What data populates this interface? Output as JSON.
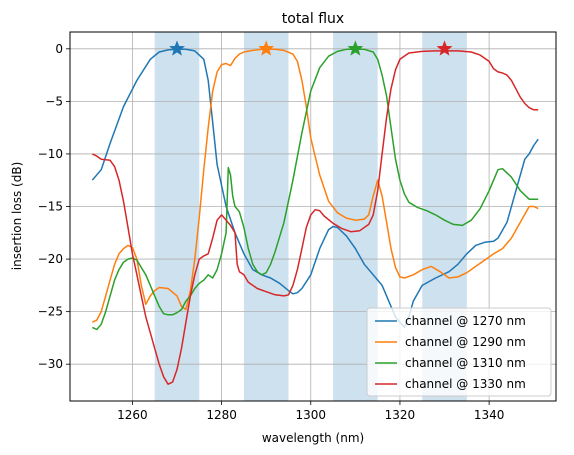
{
  "chart_data": {
    "type": "line",
    "title": "total flux",
    "xlabel": "wavelength (nm)",
    "ylabel": "insertion loss (dB)",
    "xlim": [
      1246,
      1355
    ],
    "ylim": [
      -33.5,
      1.6
    ],
    "xticks": [
      1260,
      1280,
      1300,
      1320,
      1340
    ],
    "yticks": [
      0,
      -5,
      -10,
      -15,
      -20,
      -25,
      -30
    ],
    "grid": true,
    "legend_position": "bottom-right",
    "bands": [
      {
        "from": 1265,
        "to": 1275,
        "color": "#aecde3"
      },
      {
        "from": 1285,
        "to": 1295,
        "color": "#aecde3"
      },
      {
        "from": 1305,
        "to": 1315,
        "color": "#aecde3"
      },
      {
        "from": 1325,
        "to": 1335,
        "color": "#aecde3"
      }
    ],
    "series": [
      {
        "name": "channel @ 1270 nm",
        "color": "#1f77b4",
        "marker_x": 1270,
        "marker_y": 0,
        "points": [
          [
            1251,
            -12.5
          ],
          [
            1253,
            -11.5
          ],
          [
            1255,
            -9
          ],
          [
            1258,
            -5.5
          ],
          [
            1261,
            -3
          ],
          [
            1264,
            -1
          ],
          [
            1266,
            -0.3
          ],
          [
            1268,
            -0.1
          ],
          [
            1270,
            -0.05
          ],
          [
            1272,
            -0.05
          ],
          [
            1274,
            -0.2
          ],
          [
            1276,
            -1
          ],
          [
            1277,
            -3
          ],
          [
            1278,
            -7
          ],
          [
            1279,
            -11
          ],
          [
            1280,
            -13
          ],
          [
            1281,
            -15
          ],
          [
            1283,
            -17.5
          ],
          [
            1285,
            -19.5
          ],
          [
            1287,
            -21
          ],
          [
            1289,
            -21.5
          ],
          [
            1291,
            -21.8
          ],
          [
            1293,
            -22.3
          ],
          [
            1295,
            -23
          ],
          [
            1296,
            -23.3
          ],
          [
            1297,
            -23.2
          ],
          [
            1298,
            -22.8
          ],
          [
            1300,
            -21.5
          ],
          [
            1302,
            -19
          ],
          [
            1304,
            -17.2
          ],
          [
            1305,
            -16.9
          ],
          [
            1306,
            -17
          ],
          [
            1308,
            -17.8
          ],
          [
            1310,
            -19
          ],
          [
            1312,
            -20.5
          ],
          [
            1314,
            -21.5
          ],
          [
            1315,
            -22
          ],
          [
            1316,
            -22.5
          ],
          [
            1317,
            -23.5
          ],
          [
            1318,
            -24.5
          ],
          [
            1319,
            -25.5
          ],
          [
            1320,
            -26
          ],
          [
            1321,
            -26.5
          ],
          [
            1322,
            -25.5
          ],
          [
            1323,
            -24
          ],
          [
            1325,
            -22.5
          ],
          [
            1328,
            -21.8
          ],
          [
            1331,
            -21.2
          ],
          [
            1333,
            -20.5
          ],
          [
            1335,
            -19.5
          ],
          [
            1337,
            -18.7
          ],
          [
            1339,
            -18.4
          ],
          [
            1341,
            -18.3
          ],
          [
            1342,
            -18
          ],
          [
            1344,
            -16.5
          ],
          [
            1346,
            -13.5
          ],
          [
            1348,
            -10.5
          ],
          [
            1349,
            -10
          ],
          [
            1350,
            -9.2
          ],
          [
            1351,
            -8.6
          ]
        ]
      },
      {
        "name": "channel @ 1290 nm",
        "color": "#ff7f0e",
        "marker_x": 1290,
        "marker_y": 0,
        "points": [
          [
            1251,
            -26
          ],
          [
            1252,
            -25.8
          ],
          [
            1253,
            -25
          ],
          [
            1254,
            -23.5
          ],
          [
            1255,
            -22
          ],
          [
            1256,
            -20.5
          ],
          [
            1257,
            -19.5
          ],
          [
            1258,
            -19
          ],
          [
            1259,
            -18.7
          ],
          [
            1260,
            -18.9
          ],
          [
            1261,
            -20
          ],
          [
            1262,
            -22.5
          ],
          [
            1263,
            -24.3
          ],
          [
            1264,
            -23.5
          ],
          [
            1265,
            -23
          ],
          [
            1266,
            -22.7
          ],
          [
            1268,
            -22.8
          ],
          [
            1270,
            -23.5
          ],
          [
            1271,
            -24.5
          ],
          [
            1272,
            -24.8
          ],
          [
            1273,
            -23
          ],
          [
            1274,
            -20
          ],
          [
            1275,
            -16
          ],
          [
            1276,
            -11.5
          ],
          [
            1277,
            -7.5
          ],
          [
            1278,
            -4
          ],
          [
            1279,
            -2.2
          ],
          [
            1280,
            -1.5
          ],
          [
            1281,
            -1.4
          ],
          [
            1282,
            -1.6
          ],
          [
            1283,
            -0.9
          ],
          [
            1284,
            -0.5
          ],
          [
            1285,
            -0.3
          ],
          [
            1287,
            -0.15
          ],
          [
            1289,
            -0.05
          ],
          [
            1290,
            -0.05
          ],
          [
            1292,
            -0.05
          ],
          [
            1294,
            -0.15
          ],
          [
            1296,
            -0.5
          ],
          [
            1297,
            -1.2
          ],
          [
            1298,
            -3
          ],
          [
            1299,
            -5.5
          ],
          [
            1300,
            -8.5
          ],
          [
            1302,
            -12
          ],
          [
            1304,
            -14.5
          ],
          [
            1306,
            -15.6
          ],
          [
            1308,
            -16.1
          ],
          [
            1310,
            -16.3
          ],
          [
            1312,
            -16.2
          ],
          [
            1313,
            -15.8
          ],
          [
            1314,
            -14
          ],
          [
            1315,
            -12.5
          ],
          [
            1316,
            -14
          ],
          [
            1317,
            -16.5
          ],
          [
            1318,
            -19
          ],
          [
            1319,
            -20.8
          ],
          [
            1320,
            -21.7
          ],
          [
            1321,
            -21.8
          ],
          [
            1323,
            -21.5
          ],
          [
            1325,
            -21
          ],
          [
            1327,
            -20.7
          ],
          [
            1329,
            -21.2
          ],
          [
            1331,
            -21.8
          ],
          [
            1333,
            -21.7
          ],
          [
            1335,
            -21.3
          ],
          [
            1337,
            -20.7
          ],
          [
            1339,
            -20.1
          ],
          [
            1341,
            -19.5
          ],
          [
            1343,
            -19
          ],
          [
            1345,
            -18
          ],
          [
            1347,
            -16.5
          ],
          [
            1349,
            -15
          ],
          [
            1350,
            -15
          ],
          [
            1351,
            -15.2
          ]
        ]
      },
      {
        "name": "channel @ 1310 nm",
        "color": "#2ca02c",
        "marker_x": 1310,
        "marker_y": 0,
        "points": [
          [
            1251,
            -26.5
          ],
          [
            1252,
            -26.7
          ],
          [
            1253,
            -26.2
          ],
          [
            1254,
            -25
          ],
          [
            1255,
            -23.5
          ],
          [
            1256,
            -22
          ],
          [
            1257,
            -21
          ],
          [
            1258,
            -20.3
          ],
          [
            1259,
            -20
          ],
          [
            1260,
            -19.9
          ],
          [
            1261,
            -20.1
          ],
          [
            1262,
            -20.8
          ],
          [
            1263,
            -21.5
          ],
          [
            1264,
            -22.5
          ],
          [
            1265,
            -23.5
          ],
          [
            1266,
            -24.5
          ],
          [
            1267,
            -25.2
          ],
          [
            1268,
            -25.3
          ],
          [
            1269,
            -25.3
          ],
          [
            1270,
            -25.1
          ],
          [
            1271,
            -24.8
          ],
          [
            1272,
            -24
          ],
          [
            1273,
            -23.5
          ],
          [
            1274,
            -22.8
          ],
          [
            1275,
            -22.3
          ],
          [
            1276,
            -22
          ],
          [
            1277,
            -21.5
          ],
          [
            1278,
            -21.8
          ],
          [
            1279,
            -21
          ],
          [
            1280,
            -19.5
          ],
          [
            1281,
            -17.5
          ],
          [
            1281.5,
            -11.3
          ],
          [
            1282,
            -12
          ],
          [
            1282.5,
            -14
          ],
          [
            1283,
            -15
          ],
          [
            1284,
            -15.5
          ],
          [
            1285,
            -17
          ],
          [
            1286,
            -19
          ],
          [
            1287,
            -20.5
          ],
          [
            1288,
            -21.2
          ],
          [
            1289,
            -21.5
          ],
          [
            1290,
            -21.3
          ],
          [
            1291,
            -20.5
          ],
          [
            1292,
            -19.3
          ],
          [
            1294,
            -16.5
          ],
          [
            1296,
            -12.5
          ],
          [
            1298,
            -8
          ],
          [
            1300,
            -4
          ],
          [
            1302,
            -1.8
          ],
          [
            1304,
            -0.7
          ],
          [
            1306,
            -0.25
          ],
          [
            1308,
            -0.05
          ],
          [
            1310,
            -0.05
          ],
          [
            1312,
            -0.05
          ],
          [
            1314,
            -0.3
          ],
          [
            1315,
            -1
          ],
          [
            1316,
            -2.5
          ],
          [
            1317,
            -4.5
          ],
          [
            1318,
            -7.5
          ],
          [
            1319,
            -10.5
          ],
          [
            1320,
            -12.5
          ],
          [
            1321,
            -13.8
          ],
          [
            1322,
            -14.6
          ],
          [
            1324,
            -15.1
          ],
          [
            1326,
            -15.4
          ],
          [
            1328,
            -15.8
          ],
          [
            1330,
            -16.3
          ],
          [
            1332,
            -16.7
          ],
          [
            1334,
            -16.8
          ],
          [
            1336,
            -16.3
          ],
          [
            1338,
            -15.2
          ],
          [
            1340,
            -13.5
          ],
          [
            1342,
            -11.5
          ],
          [
            1343,
            -11.4
          ],
          [
            1345,
            -12.2
          ],
          [
            1347,
            -13.5
          ],
          [
            1349,
            -14.3
          ],
          [
            1351,
            -14.3
          ]
        ]
      },
      {
        "name": "channel @ 1330 nm",
        "color": "#d62728",
        "marker_x": 1330,
        "marker_y": 0,
        "points": [
          [
            1251,
            -10
          ],
          [
            1252,
            -10.2
          ],
          [
            1253,
            -10.5
          ],
          [
            1255,
            -10.6
          ],
          [
            1256,
            -11.2
          ],
          [
            1257,
            -12.5
          ],
          [
            1258,
            -14.5
          ],
          [
            1259,
            -17
          ],
          [
            1260,
            -19.5
          ],
          [
            1261,
            -21.5
          ],
          [
            1262,
            -23.5
          ],
          [
            1263,
            -25.5
          ],
          [
            1264,
            -27
          ],
          [
            1265,
            -28.5
          ],
          [
            1266,
            -30
          ],
          [
            1267,
            -31.2
          ],
          [
            1268,
            -31.9
          ],
          [
            1269,
            -31.7
          ],
          [
            1270,
            -30.5
          ],
          [
            1271,
            -28.5
          ],
          [
            1272,
            -26
          ],
          [
            1273,
            -23.5
          ],
          [
            1274,
            -21.5
          ],
          [
            1275,
            -20
          ],
          [
            1276,
            -19.7
          ],
          [
            1277,
            -19.5
          ],
          [
            1278,
            -18
          ],
          [
            1279,
            -16.3
          ],
          [
            1280,
            -15.8
          ],
          [
            1281,
            -16.3
          ],
          [
            1282,
            -16.8
          ],
          [
            1283,
            -17.5
          ],
          [
            1283.5,
            -20.5
          ],
          [
            1284,
            -21.2
          ],
          [
            1285,
            -21.5
          ],
          [
            1286,
            -22.2
          ],
          [
            1288,
            -22.8
          ],
          [
            1290,
            -23.1
          ],
          [
            1292,
            -23.4
          ],
          [
            1294,
            -23.5
          ],
          [
            1295,
            -23.4
          ],
          [
            1296,
            -22.5
          ],
          [
            1297,
            -21
          ],
          [
            1298,
            -19
          ],
          [
            1299,
            -17
          ],
          [
            1300,
            -15.8
          ],
          [
            1301,
            -15.3
          ],
          [
            1302,
            -15.4
          ],
          [
            1303,
            -15.9
          ],
          [
            1305,
            -16.6
          ],
          [
            1307,
            -17.1
          ],
          [
            1309,
            -17.4
          ],
          [
            1311,
            -17.3
          ],
          [
            1313,
            -16.7
          ],
          [
            1314,
            -15.8
          ],
          [
            1315,
            -13.5
          ],
          [
            1316,
            -10
          ],
          [
            1317,
            -6.5
          ],
          [
            1318,
            -3.8
          ],
          [
            1319,
            -2
          ],
          [
            1320,
            -1
          ],
          [
            1322,
            -0.4
          ],
          [
            1325,
            -0.25
          ],
          [
            1328,
            -0.2
          ],
          [
            1330,
            -0.2
          ],
          [
            1333,
            -0.2
          ],
          [
            1336,
            -0.3
          ],
          [
            1338,
            -0.6
          ],
          [
            1340,
            -1.2
          ],
          [
            1341,
            -1.9
          ],
          [
            1342,
            -2.2
          ],
          [
            1343,
            -2.3
          ],
          [
            1344,
            -2.5
          ],
          [
            1345,
            -3
          ],
          [
            1346,
            -3.8
          ],
          [
            1347,
            -4.6
          ],
          [
            1348,
            -5.2
          ],
          [
            1349,
            -5.6
          ],
          [
            1350,
            -5.8
          ],
          [
            1351,
            -5.8
          ]
        ]
      }
    ]
  }
}
